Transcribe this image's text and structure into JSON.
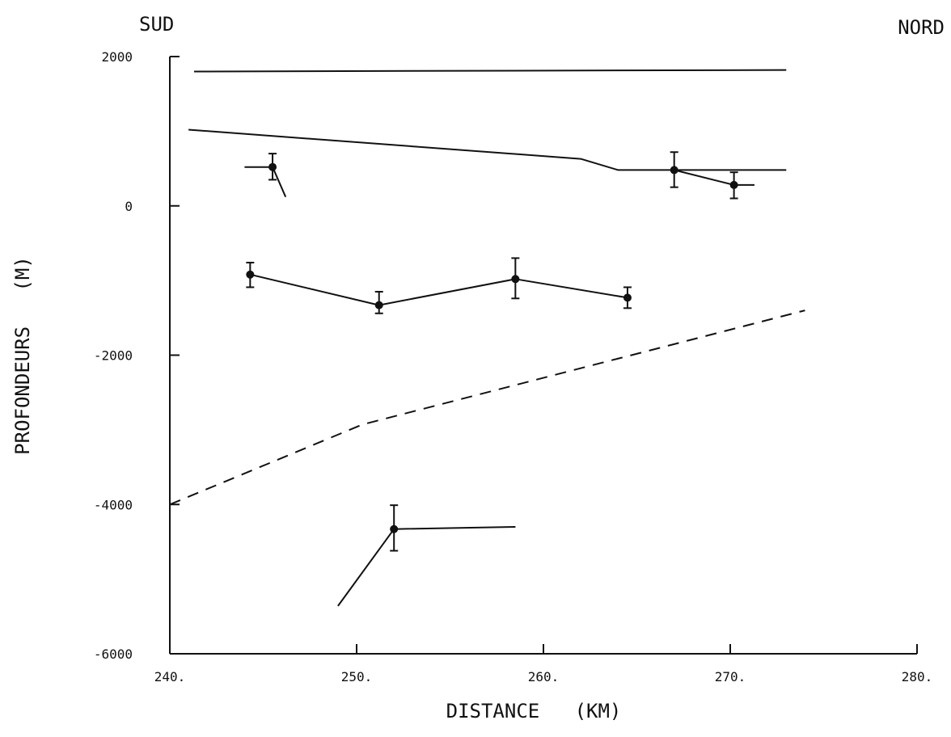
{
  "chart_data": {
    "type": "line",
    "title": "",
    "left_label": "SUD",
    "right_label": "NORD",
    "xlabel": "DISTANCE   (KM)",
    "ylabel": "PROFONDEURS   (M)",
    "xlim": [
      240,
      280
    ],
    "ylim": [
      -6000,
      2000
    ],
    "xticks": [
      240,
      250,
      260,
      270,
      280
    ],
    "xtick_labels": [
      "240.",
      "250.",
      "260.",
      "270.",
      "280."
    ],
    "yticks": [
      2000,
      0,
      -2000,
      -4000,
      -6000
    ],
    "ytick_labels": [
      "2000",
      "0",
      "-2000",
      "-4000",
      "-6000"
    ],
    "grid": false,
    "series": [
      {
        "style": "solid",
        "x": [
          241.3,
          273.0
        ],
        "y": [
          1800,
          1820
        ]
      },
      {
        "style": "solid",
        "x": [
          241.0,
          262.0,
          264.0,
          273.0
        ],
        "y": [
          1020,
          630,
          480,
          480
        ]
      },
      {
        "style": "solid",
        "x": [
          244.0,
          245.5,
          246.2
        ],
        "y": [
          520,
          520,
          120
        ]
      },
      {
        "style": "solid",
        "x": [
          267.0,
          270.2,
          271.3
        ],
        "y": [
          480,
          280,
          280
        ]
      },
      {
        "style": "solid",
        "x": [
          244.3,
          251.2,
          258.5,
          264.5
        ],
        "y": [
          -920,
          -1330,
          -980,
          -1230
        ]
      },
      {
        "style": "dashed",
        "x": [
          240.0,
          250.3,
          274.0
        ],
        "y": [
          -4000,
          -2930,
          -1400
        ]
      },
      {
        "style": "solid",
        "x": [
          249.0,
          252.0,
          258.5
        ],
        "y": [
          -5360,
          -4330,
          -4300
        ]
      }
    ],
    "points": [
      {
        "x": 245.5,
        "y": 520,
        "err_low": 350,
        "err_high": 700
      },
      {
        "x": 267.0,
        "y": 480,
        "err_low": 250,
        "err_high": 720
      },
      {
        "x": 270.2,
        "y": 280,
        "err_low": 100,
        "err_high": 450
      },
      {
        "x": 244.3,
        "y": -920,
        "err_low": -1090,
        "err_high": -760
      },
      {
        "x": 251.2,
        "y": -1330,
        "err_low": -1440,
        "err_high": -1150
      },
      {
        "x": 258.5,
        "y": -980,
        "err_low": -1240,
        "err_high": -700
      },
      {
        "x": 264.5,
        "y": -1230,
        "err_low": -1370,
        "err_high": -1090
      },
      {
        "x": 252.0,
        "y": -4330,
        "err_low": -4620,
        "err_high": -4010
      }
    ]
  }
}
